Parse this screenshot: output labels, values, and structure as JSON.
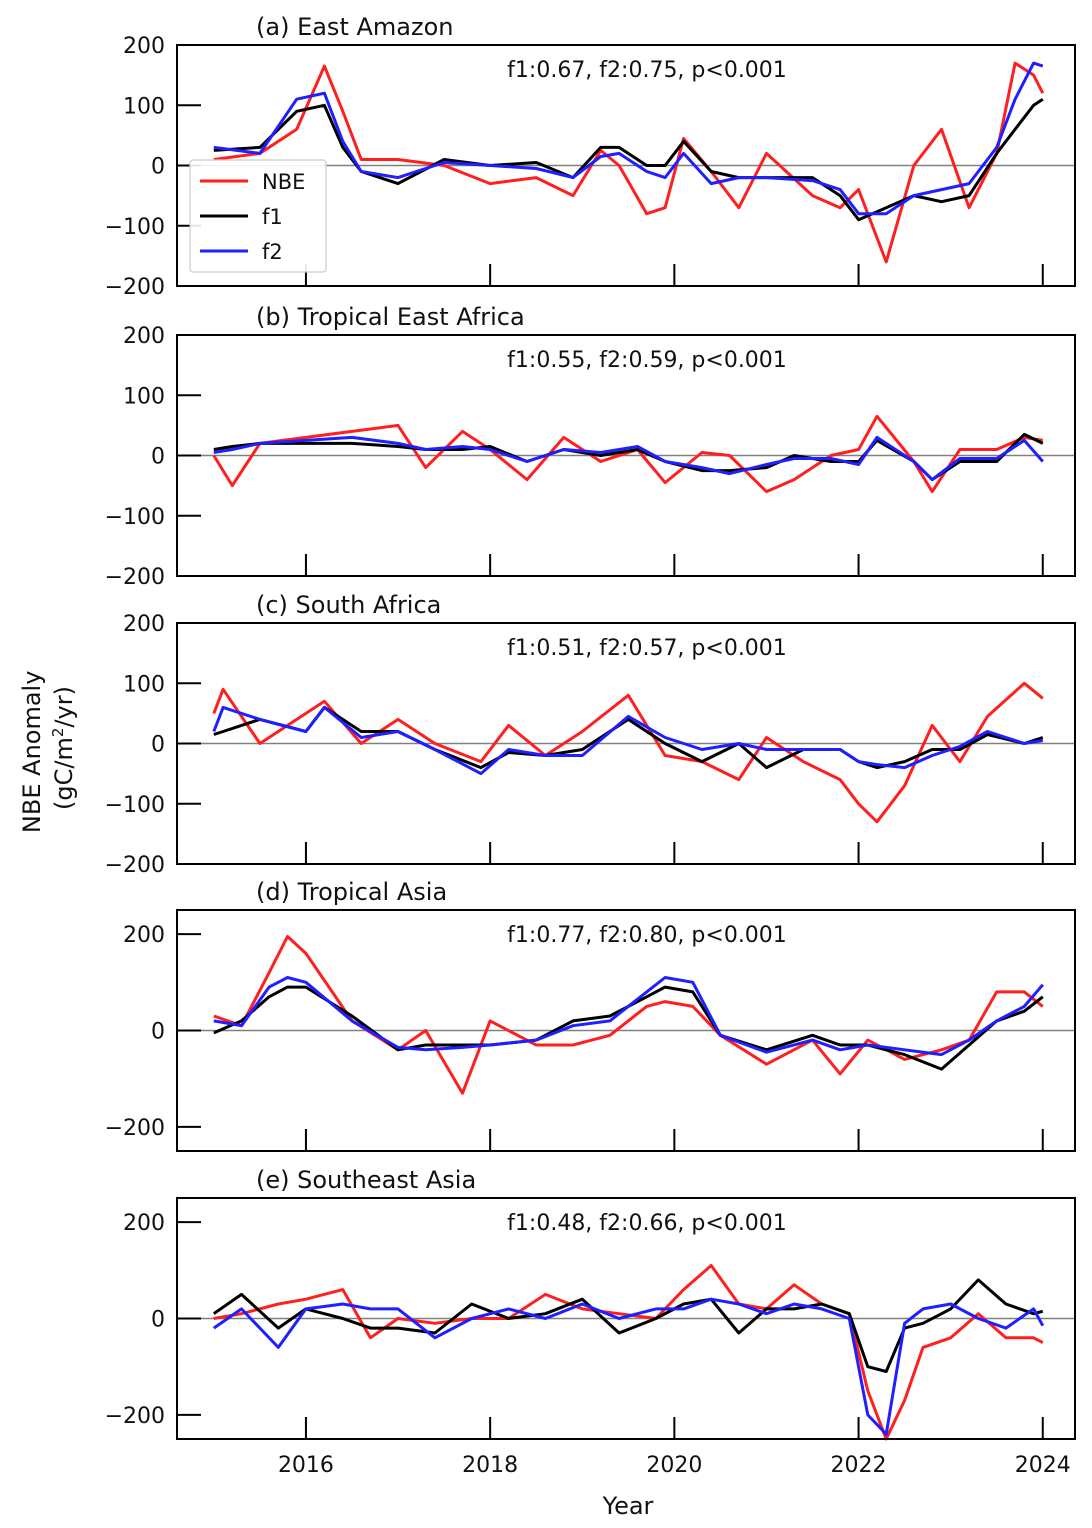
{
  "figure": {
    "ylabel_line1": "NBE Anomaly",
    "ylabel_line2_prefix": "(gC/m",
    "ylabel_line2_sup": "2",
    "ylabel_line2_suffix": "/yr)",
    "xlabel": "Year",
    "x_ticks": [
      2016,
      2018,
      2020,
      2022,
      2024
    ],
    "xlim": [
      2014.6,
      2024.35
    ]
  },
  "legend": {
    "location": "left, inside panel (a)",
    "entries": [
      {
        "label": "NBE",
        "color": "#ff1f1f"
      },
      {
        "label": "f1",
        "color": "#000000"
      },
      {
        "label": "f2",
        "color": "#1f1fff"
      }
    ]
  },
  "colors": {
    "NBE": "#ff1f1f",
    "f1": "#000000",
    "f2": "#1f1fff",
    "zero_line": "#808080"
  },
  "chart_data": [
    {
      "type": "line",
      "title": "(a) East Amazon",
      "annotation": "f1:0.67, f2:0.75, p<0.001",
      "xlabel": "",
      "ylabel": "",
      "ylim": [
        -200,
        200
      ],
      "yticks": [
        -200,
        -100,
        0,
        100,
        200
      ],
      "grid": false,
      "x": [
        2015.0,
        2015.5,
        2015.9,
        2016.2,
        2016.4,
        2016.6,
        2017.0,
        2017.5,
        2018.0,
        2018.5,
        2018.9,
        2019.2,
        2019.4,
        2019.7,
        2019.9,
        2020.1,
        2020.4,
        2020.7,
        2021.0,
        2021.5,
        2021.8,
        2022.0,
        2022.3,
        2022.6,
        2022.9,
        2023.2,
        2023.5,
        2023.7,
        2023.9,
        2024.0
      ],
      "series": [
        {
          "name": "NBE",
          "values": [
            10,
            20,
            60,
            165,
            90,
            10,
            10,
            0,
            -30,
            -20,
            -50,
            25,
            0,
            -80,
            -70,
            45,
            -10,
            -70,
            20,
            -50,
            -70,
            -40,
            -160,
            0,
            60,
            -70,
            20,
            170,
            150,
            120
          ]
        },
        {
          "name": "f1",
          "values": [
            25,
            30,
            90,
            100,
            30,
            -10,
            -30,
            10,
            0,
            5,
            -20,
            30,
            30,
            0,
            0,
            40,
            -10,
            -20,
            -20,
            -20,
            -50,
            -90,
            -70,
            -50,
            -60,
            -50,
            20,
            60,
            100,
            110
          ]
        },
        {
          "name": "f2",
          "values": [
            30,
            20,
            110,
            120,
            40,
            -10,
            -20,
            5,
            0,
            -5,
            -20,
            15,
            20,
            -10,
            -20,
            20,
            -30,
            -20,
            -20,
            -25,
            -40,
            -80,
            -80,
            -50,
            -40,
            -30,
            30,
            110,
            170,
            165
          ]
        }
      ]
    },
    {
      "type": "line",
      "title": "(b) Tropical East Africa",
      "annotation": "f1:0.55, f2:0.59, p<0.001",
      "xlabel": "",
      "ylabel": "",
      "ylim": [
        -200,
        200
      ],
      "yticks": [
        -200,
        -100,
        0,
        100,
        200
      ],
      "grid": false,
      "x": [
        2015.0,
        2015.2,
        2015.5,
        2016.0,
        2016.5,
        2017.0,
        2017.3,
        2017.7,
        2018.0,
        2018.4,
        2018.8,
        2019.2,
        2019.6,
        2019.9,
        2020.3,
        2020.6,
        2021.0,
        2021.3,
        2021.7,
        2022.0,
        2022.2,
        2022.6,
        2022.8,
        2023.1,
        2023.5,
        2023.8,
        2024.0
      ],
      "series": [
        {
          "name": "NBE",
          "values": [
            0,
            -50,
            20,
            30,
            40,
            50,
            -20,
            40,
            10,
            -40,
            30,
            -10,
            10,
            -45,
            5,
            0,
            -60,
            -40,
            0,
            10,
            65,
            -10,
            -60,
            10,
            10,
            30,
            25
          ]
        },
        {
          "name": "f1",
          "values": [
            10,
            15,
            20,
            20,
            20,
            15,
            10,
            10,
            15,
            -10,
            10,
            0,
            10,
            -10,
            -25,
            -25,
            -20,
            0,
            -10,
            -10,
            25,
            -10,
            -40,
            -10,
            -10,
            35,
            20
          ]
        },
        {
          "name": "f2",
          "values": [
            5,
            10,
            20,
            25,
            30,
            20,
            10,
            15,
            10,
            -10,
            10,
            5,
            15,
            -10,
            -20,
            -30,
            -15,
            -5,
            -5,
            -15,
            30,
            -10,
            -40,
            -5,
            -5,
            25,
            -10
          ]
        }
      ]
    },
    {
      "type": "line",
      "title": "(c) South Africa",
      "annotation": "f1:0.51, f2:0.57, p<0.001",
      "xlabel": "",
      "ylabel": "",
      "ylim": [
        -200,
        200
      ],
      "yticks": [
        -200,
        -100,
        0,
        100,
        200
      ],
      "grid": false,
      "x": [
        2015.0,
        2015.1,
        2015.5,
        2016.0,
        2016.2,
        2016.6,
        2017.0,
        2017.4,
        2017.9,
        2018.2,
        2018.6,
        2019.0,
        2019.5,
        2019.9,
        2020.3,
        2020.7,
        2021.0,
        2021.4,
        2021.8,
        2022.0,
        2022.2,
        2022.5,
        2022.8,
        2023.1,
        2023.4,
        2023.8,
        2024.0
      ],
      "series": [
        {
          "name": "NBE",
          "values": [
            50,
            90,
            0,
            50,
            70,
            0,
            40,
            0,
            -30,
            30,
            -20,
            20,
            80,
            -20,
            -30,
            -60,
            10,
            -30,
            -60,
            -100,
            -130,
            -70,
            30,
            -30,
            45,
            100,
            75
          ]
        },
        {
          "name": "f1",
          "values": [
            15,
            20,
            40,
            20,
            60,
            20,
            20,
            -10,
            -40,
            -15,
            -20,
            -10,
            40,
            0,
            -30,
            0,
            -40,
            -10,
            -10,
            -30,
            -40,
            -30,
            -10,
            -10,
            15,
            0,
            10
          ]
        },
        {
          "name": "f2",
          "values": [
            20,
            60,
            40,
            20,
            60,
            10,
            20,
            -10,
            -50,
            -10,
            -20,
            -20,
            45,
            10,
            -10,
            0,
            -10,
            -10,
            -10,
            -30,
            -35,
            -40,
            -20,
            -5,
            20,
            0,
            5
          ]
        }
      ]
    },
    {
      "type": "line",
      "title": "(d) Tropical Asia",
      "annotation": "f1:0.77, f2:0.80, p<0.001",
      "xlabel": "",
      "ylabel": "",
      "ylim": [
        -250,
        250
      ],
      "yticks": [
        -200,
        0,
        200
      ],
      "grid": false,
      "x": [
        2015.0,
        2015.3,
        2015.6,
        2015.8,
        2016.0,
        2016.5,
        2017.0,
        2017.3,
        2017.7,
        2018.0,
        2018.5,
        2018.9,
        2019.3,
        2019.7,
        2019.9,
        2020.2,
        2020.5,
        2021.0,
        2021.5,
        2021.8,
        2022.1,
        2022.5,
        2022.9,
        2023.2,
        2023.5,
        2023.8,
        2024.0
      ],
      "series": [
        {
          "name": "NBE",
          "values": [
            30,
            10,
            120,
            195,
            160,
            20,
            -40,
            0,
            -130,
            20,
            -30,
            -30,
            -10,
            50,
            60,
            50,
            -10,
            -70,
            -20,
            -90,
            -20,
            -60,
            -40,
            -20,
            80,
            80,
            50
          ]
        },
        {
          "name": "f1",
          "values": [
            -5,
            20,
            70,
            90,
            90,
            30,
            -40,
            -30,
            -30,
            -30,
            -20,
            20,
            30,
            70,
            90,
            80,
            -10,
            -40,
            -10,
            -30,
            -30,
            -50,
            -80,
            -30,
            20,
            40,
            70
          ]
        },
        {
          "name": "f2",
          "values": [
            20,
            10,
            90,
            110,
            100,
            20,
            -35,
            -40,
            -35,
            -30,
            -20,
            10,
            20,
            80,
            110,
            100,
            -10,
            -45,
            -20,
            -40,
            -30,
            -40,
            -50,
            -20,
            20,
            50,
            95
          ]
        }
      ]
    },
    {
      "type": "line",
      "title": "(e) Southeast Asia",
      "annotation": "f1:0.48, f2:0.66, p<0.001",
      "xlabel": "",
      "ylabel": "",
      "ylim": [
        -250,
        250
      ],
      "yticks": [
        -200,
        0,
        200
      ],
      "grid": false,
      "x": [
        2015.0,
        2015.3,
        2015.7,
        2016.0,
        2016.4,
        2016.7,
        2017.0,
        2017.4,
        2017.8,
        2018.2,
        2018.6,
        2019.0,
        2019.4,
        2019.8,
        2020.1,
        2020.4,
        2020.7,
        2021.0,
        2021.3,
        2021.6,
        2021.9,
        2022.1,
        2022.3,
        2022.5,
        2022.7,
        2023.0,
        2023.3,
        2023.6,
        2023.9,
        2024.0
      ],
      "series": [
        {
          "name": "NBE",
          "values": [
            0,
            10,
            30,
            40,
            60,
            -40,
            0,
            -10,
            0,
            0,
            50,
            20,
            10,
            0,
            60,
            110,
            30,
            20,
            70,
            30,
            10,
            -150,
            -250,
            -170,
            -60,
            -40,
            10,
            -40,
            -40,
            -50
          ]
        },
        {
          "name": "f1",
          "values": [
            10,
            50,
            -20,
            20,
            0,
            -20,
            -20,
            -30,
            30,
            0,
            10,
            40,
            -30,
            0,
            30,
            40,
            -30,
            20,
            20,
            30,
            10,
            -100,
            -110,
            -20,
            -10,
            20,
            80,
            30,
            10,
            15
          ]
        },
        {
          "name": "f2",
          "values": [
            -20,
            20,
            -60,
            20,
            30,
            20,
            20,
            -40,
            0,
            20,
            0,
            30,
            0,
            20,
            20,
            40,
            30,
            10,
            30,
            20,
            0,
            -200,
            -240,
            -10,
            20,
            30,
            0,
            -20,
            20,
            -15
          ]
        }
      ]
    }
  ]
}
